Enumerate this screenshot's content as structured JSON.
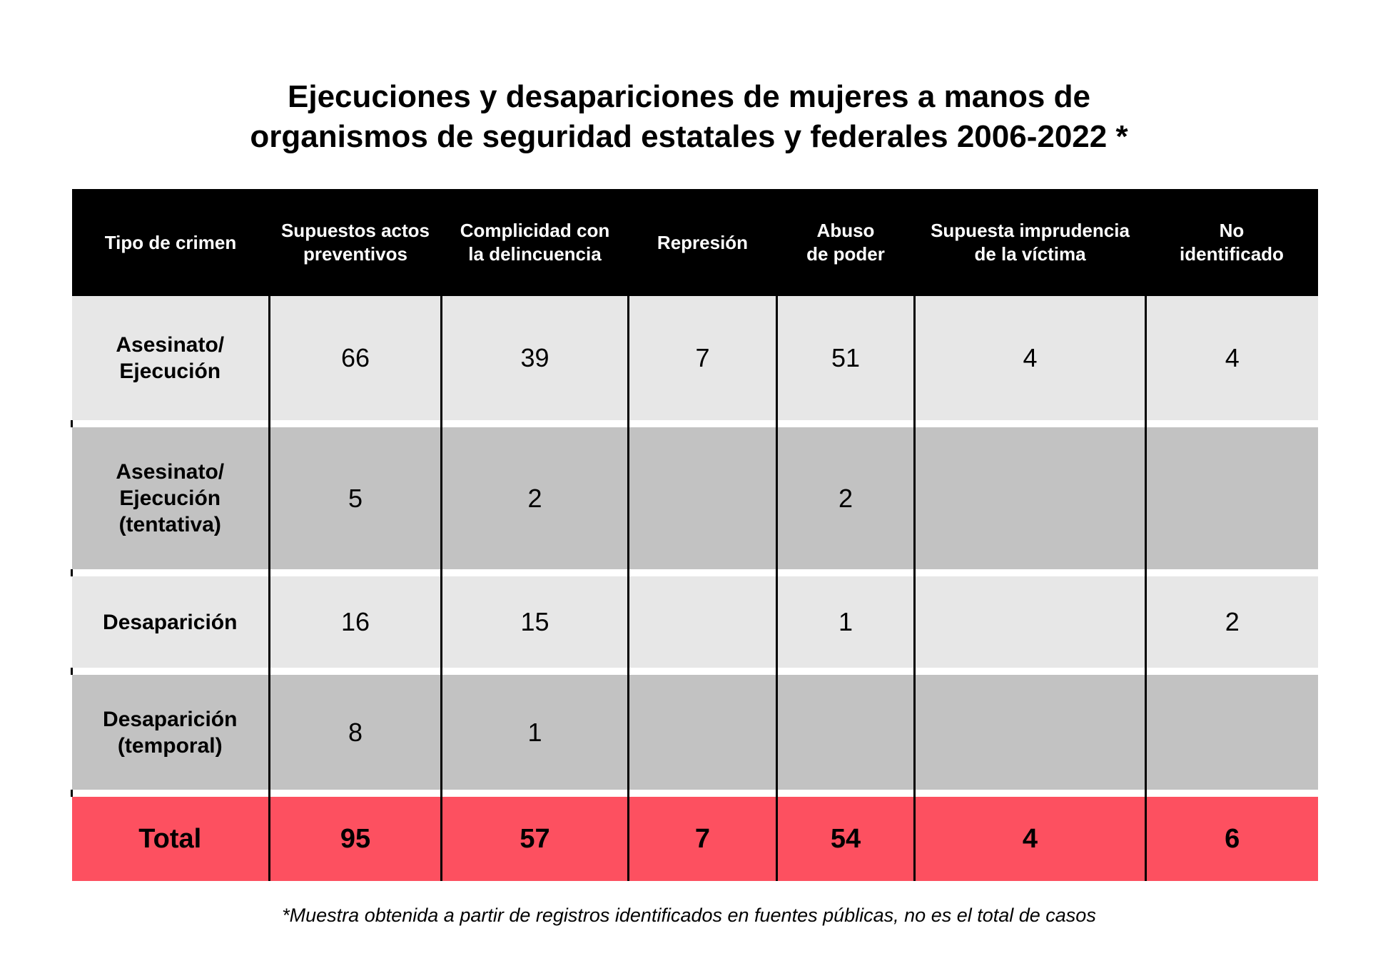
{
  "title_line1": "Ejecuciones y desapariciones de mujeres a manos de",
  "title_line2": "organismos de seguridad estatales y federales 2006-2022 *",
  "footnote": "*Muestra obtenida a partir de registros identificados en fuentes públicas, no es el total de casos",
  "colors": {
    "header_bg": "#000000",
    "row_light": "#e7e7e7",
    "row_dark": "#c2c2c2",
    "total_bg": "#fd5060"
  },
  "chart_data": {
    "type": "table",
    "title": "Ejecuciones y desapariciones de mujeres a manos de organismos de seguridad estatales y federales 2006-2022 *",
    "columns": [
      "Tipo de crimen",
      "Supuestos actos\npreventivos",
      "Complicidad con\nla delincuencia",
      "Represión",
      "Abuso\nde poder",
      "Supuesta imprudencia\nde la víctima",
      "No\nidentificado"
    ],
    "rows": [
      {
        "label": "Asesinato/\nEjecución",
        "values": [
          "66",
          "39",
          "7",
          "51",
          "4",
          "4"
        ],
        "shade": "light"
      },
      {
        "label": "Asesinato/\nEjecución\n(tentativa)",
        "values": [
          "5",
          "2",
          "",
          "2",
          "",
          ""
        ],
        "shade": "dark"
      },
      {
        "label": "Desaparición",
        "values": [
          "16",
          "15",
          "",
          "1",
          "",
          "2"
        ],
        "shade": "light"
      },
      {
        "label": "Desaparición\n(temporal)",
        "values": [
          "8",
          "1",
          "",
          "",
          "",
          ""
        ],
        "shade": "dark"
      }
    ],
    "total": {
      "label": "Total",
      "values": [
        "95",
        "57",
        "7",
        "54",
        "4",
        "6"
      ]
    }
  }
}
